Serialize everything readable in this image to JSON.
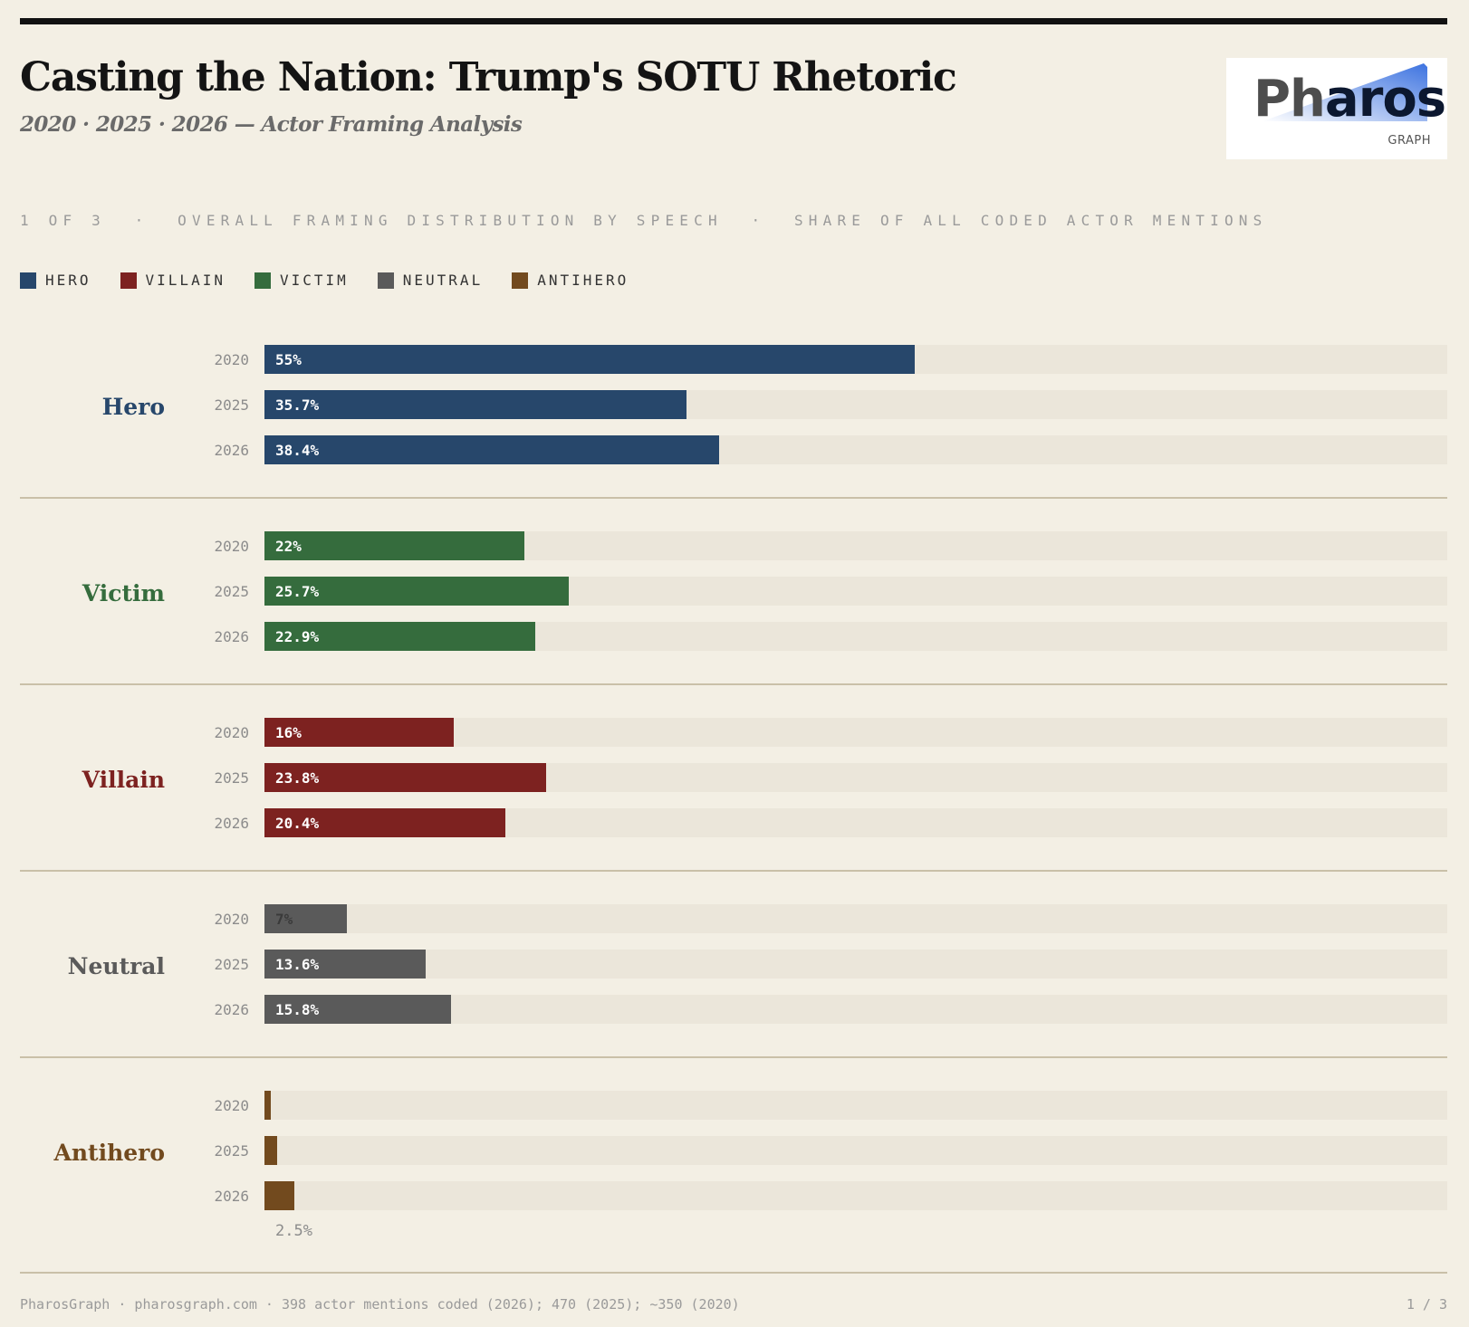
{
  "header": {
    "title": "Casting the Nation: Trump's SOTU Rhetoric",
    "subtitle": "2020 · 2025 · 2026 — Actor Framing Analysis"
  },
  "logo": {
    "word_part1": "Ph",
    "word_part2": "aros",
    "sub": "GRAPH"
  },
  "section_label": "1 OF 3  ·  OVERALL FRAMING DISTRIBUTION BY SPEECH  ·  SHARE OF ALL CODED ACTOR MENTIONS",
  "legend": [
    {
      "label": "HERO",
      "color": "#27476b"
    },
    {
      "label": "VILLAIN",
      "color": "#7d2220"
    },
    {
      "label": "VICTIM",
      "color": "#356c3d"
    },
    {
      "label": "NEUTRAL",
      "color": "#5a5a5a"
    },
    {
      "label": "ANTIHERO",
      "color": "#724a1e"
    }
  ],
  "chart_data": {
    "type": "bar",
    "orientation": "horizontal",
    "title": "Overall framing distribution by speech",
    "unit": "%",
    "xlim": [
      0,
      100
    ],
    "years": [
      "2020",
      "2025",
      "2026"
    ],
    "groups": [
      {
        "name": "Hero",
        "color": "#27476b",
        "values": [
          55,
          35.7,
          38.4
        ],
        "labels": [
          "55%",
          "35.7%",
          "38.4%"
        ]
      },
      {
        "name": "Victim",
        "color": "#356c3d",
        "values": [
          22,
          25.7,
          22.9
        ],
        "labels": [
          "22%",
          "25.7%",
          "22.9%"
        ]
      },
      {
        "name": "Villain",
        "color": "#7d2220",
        "values": [
          16,
          23.8,
          20.4
        ],
        "labels": [
          "16%",
          "23.8%",
          "20.4%"
        ]
      },
      {
        "name": "Neutral",
        "color": "#5a5a5a",
        "values": [
          7,
          13.6,
          15.8
        ],
        "labels": [
          "7%",
          "13.6%",
          "15.8%"
        ]
      },
      {
        "name": "Antihero",
        "color": "#724a1e",
        "values": [
          0.5,
          1.1,
          2.5
        ],
        "labels": [
          "",
          "",
          ""
        ],
        "note": "2.5%"
      }
    ]
  },
  "footer": {
    "source": "PharosGraph · pharosgraph.com · 398 actor mentions coded (2026); 470 (2025); ~350 (2020)",
    "page": "1 / 3"
  }
}
